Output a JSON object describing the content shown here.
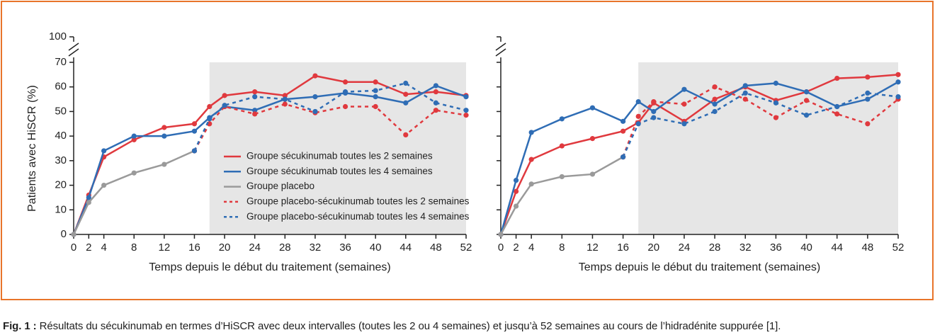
{
  "charts": [
    {
      "chart_data": {
        "type": "line",
        "ylabel": "Patients avec HiSCR (%)",
        "xlabel": "Temps depuis le début du traitement (semaines)",
        "x": [
          0,
          2,
          4,
          8,
          12,
          16,
          18,
          20,
          24,
          28,
          32,
          36,
          40,
          44,
          48,
          52
        ],
        "xlim": [
          0,
          52
        ],
        "xticks": [
          0,
          2,
          4,
          8,
          12,
          16,
          20,
          24,
          28,
          32,
          36,
          40,
          44,
          48,
          52
        ],
        "ylim": [
          0,
          100
        ],
        "yticks": [
          0,
          10,
          20,
          30,
          40,
          50,
          60,
          70,
          100
        ],
        "ytick_labels": true,
        "axis_break": [
          72,
          98
        ],
        "shade": {
          "x": [
            18,
            52
          ],
          "y": [
            0,
            70
          ]
        },
        "shade_color": "#e6e6e6",
        "legend": "center-right",
        "series": [
          {
            "name": "Groupe sécukinumab toutes les 2 semaines",
            "color": "#e0393e",
            "dash": false,
            "values": [
              0,
              16,
              31.5,
              38.5,
              43.5,
              45,
              52,
              56.5,
              58,
              56.5,
              64.5,
              62,
              62,
              57,
              58,
              56.5
            ]
          },
          {
            "name": "Groupe sécukinumab toutes les 4 semaines",
            "color": "#2f6db5",
            "dash": false,
            "values": [
              0,
              15,
              34,
              40,
              40,
              42,
              47.5,
              52,
              50.5,
              55,
              56,
              57.5,
              56,
              53.5,
              60.5,
              56
            ]
          },
          {
            "name": "Groupe placebo",
            "color": "#9a9a9a",
            "dash": false,
            "values": [
              0,
              13,
              20,
              25,
              28.5,
              34,
              null,
              null,
              null,
              null,
              null,
              null,
              null,
              null,
              null,
              null
            ]
          },
          {
            "name": "Groupe placebo-sécukinumab toutes les 2 semaines",
            "color": "#e0393e",
            "dash": true,
            "values": [
              null,
              null,
              null,
              null,
              null,
              34,
              45,
              52,
              49,
              53,
              49.5,
              52,
              52,
              40.5,
              50.5,
              48.5
            ]
          },
          {
            "name": "Groupe placebo-sécukinumab toutes les 4 semaines",
            "color": "#2f6db5",
            "dash": true,
            "values": [
              null,
              null,
              null,
              null,
              null,
              34,
              47,
              52.5,
              56,
              55,
              50,
              58,
              58.5,
              61.5,
              53.5,
              50.5
            ]
          }
        ]
      }
    },
    {
      "chart_data": {
        "type": "line",
        "xlabel": "Temps depuis le début du traitement (semaines)",
        "x": [
          0,
          2,
          4,
          8,
          12,
          16,
          18,
          20,
          24,
          28,
          32,
          36,
          40,
          44,
          48,
          52
        ],
        "xlim": [
          0,
          52
        ],
        "xticks": [
          0,
          2,
          4,
          8,
          12,
          16,
          20,
          24,
          28,
          32,
          36,
          40,
          44,
          48,
          52
        ],
        "ylim": [
          0,
          100
        ],
        "yticks": [
          0,
          10,
          20,
          30,
          40,
          50,
          60,
          70,
          100
        ],
        "ytick_labels": false,
        "axis_break": [
          72,
          98
        ],
        "shade": {
          "x": [
            18,
            52
          ],
          "y": [
            0,
            70
          ]
        },
        "shade_color": "#e6e6e6",
        "series": [
          {
            "color": "#e0393e",
            "dash": false,
            "values": [
              0,
              17.5,
              30.5,
              36,
              39,
              42,
              45.5,
              53.5,
              46,
              55,
              60,
              54.5,
              58,
              63.5,
              64,
              65
            ]
          },
          {
            "color": "#2f6db5",
            "dash": false,
            "values": [
              0,
              22,
              41.5,
              47,
              51.5,
              46,
              54,
              50,
              59,
              53,
              60.5,
              61.5,
              58,
              52,
              55,
              62
            ]
          },
          {
            "color": "#9a9a9a",
            "dash": false,
            "values": [
              0,
              11.5,
              20.5,
              23.5,
              24.5,
              31.5,
              null,
              null,
              null,
              null,
              null,
              null,
              null,
              null,
              null,
              null
            ]
          },
          {
            "color": "#e0393e",
            "dash": true,
            "values": [
              null,
              null,
              null,
              null,
              null,
              31.5,
              48,
              54,
              53,
              60,
              55,
              47.5,
              54.5,
              49,
              45,
              55
            ]
          },
          {
            "color": "#2f6db5",
            "dash": true,
            "values": [
              null,
              null,
              null,
              null,
              null,
              31.5,
              45,
              47.5,
              45,
              50,
              57.5,
              53.5,
              48.5,
              52,
              57.5,
              56
            ]
          }
        ]
      }
    }
  ],
  "caption": {
    "label": "Fig. 1 :",
    "text": "Résultats du sécukinumab en termes d’HiSCR avec deux intervalles (toutes les 2 ou 4 semaines) et jusqu’à 52 semaines au cours de l’hidradénite suppurée [1]."
  }
}
